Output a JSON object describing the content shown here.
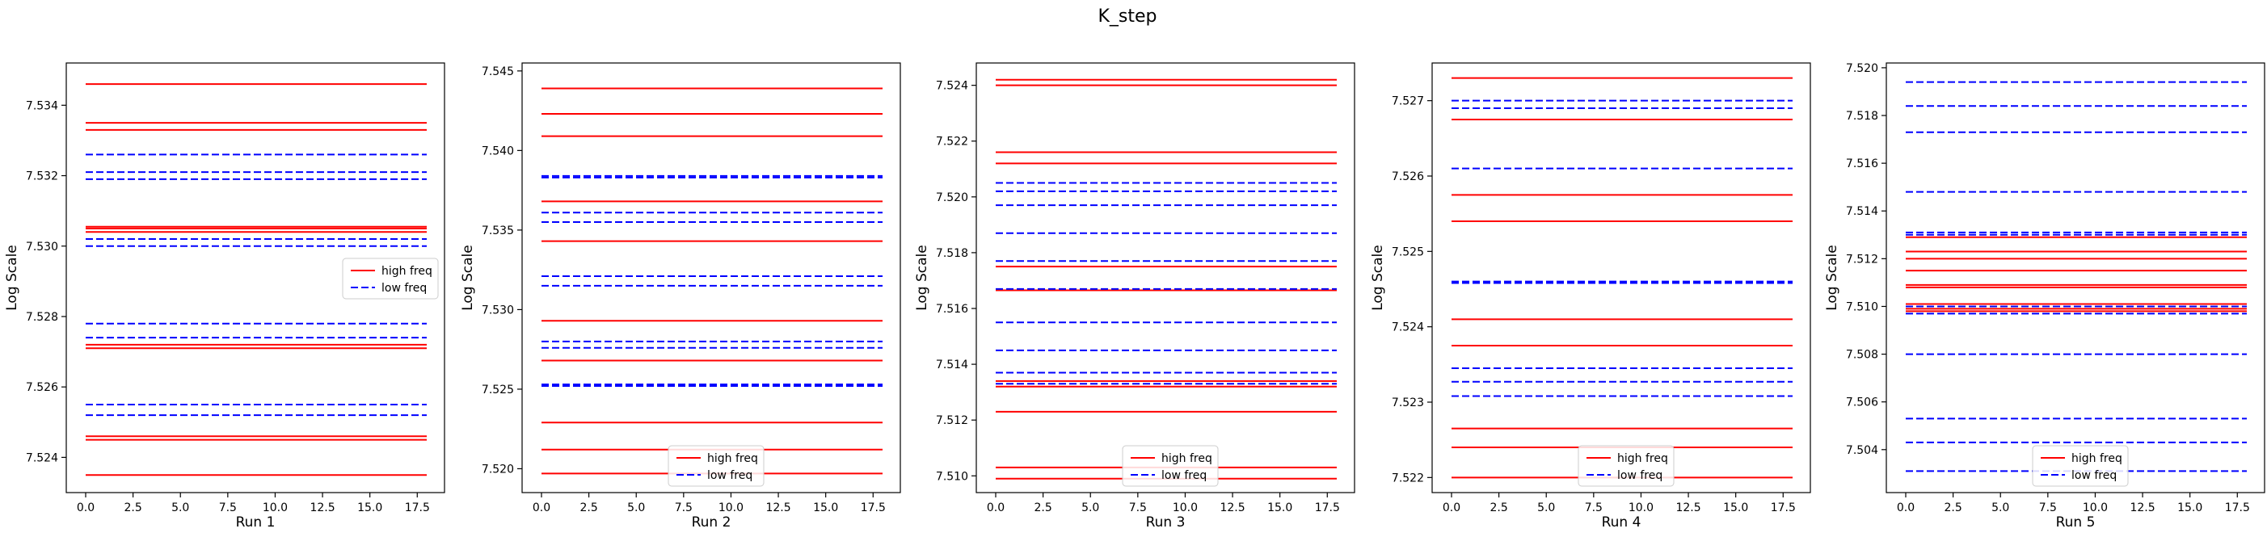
{
  "chart_data": {
    "title": "K_step",
    "type": "line",
    "x_domain": [
      0,
      18
    ],
    "x_ticks": [
      0.0,
      2.5,
      5.0,
      7.5,
      10.0,
      12.5,
      15.0,
      17.5
    ],
    "ylabel": "Log Scale",
    "legend_entries": [
      {
        "name": "high freq",
        "color": "#ff0000",
        "style": "solid"
      },
      {
        "name": "low freq",
        "color": "#0000ff",
        "style": "dashed"
      }
    ],
    "panels": [
      {
        "xlabel": "Run 1",
        "ylim": [
          7.523,
          7.5352
        ],
        "y_ticks": [
          7.524,
          7.526,
          7.528,
          7.53,
          7.532,
          7.534
        ],
        "legend_position": "center-right",
        "high_freq": [
          7.5346,
          7.5335,
          7.5333,
          7.53055,
          7.5305,
          7.5304,
          7.5272,
          7.5271,
          7.5246,
          7.5245,
          7.5235
        ],
        "low_freq": [
          7.5326,
          7.5321,
          7.5319,
          7.5302,
          7.53,
          7.5278,
          7.5274,
          7.5255,
          7.5252
        ]
      },
      {
        "xlabel": "Run 2",
        "ylim": [
          7.5185,
          7.5455
        ],
        "y_ticks": [
          7.52,
          7.525,
          7.53,
          7.535,
          7.54,
          7.545
        ],
        "legend_position": "lower-center",
        "high_freq": [
          7.5439,
          7.5423,
          7.5409,
          7.5368,
          7.5343,
          7.5293,
          7.5268,
          7.5229,
          7.5212,
          7.5197
        ],
        "low_freq": [
          7.5384,
          7.5383,
          7.5361,
          7.5355,
          7.5321,
          7.5315,
          7.528,
          7.5276,
          7.5253,
          7.5252
        ]
      },
      {
        "xlabel": "Run 3",
        "ylim": [
          7.5094,
          7.5248
        ],
        "y_ticks": [
          7.51,
          7.512,
          7.514,
          7.516,
          7.518,
          7.52,
          7.522,
          7.524
        ],
        "legend_position": "lower-center",
        "high_freq": [
          7.5242,
          7.524,
          7.5216,
          7.5212,
          7.5175,
          7.51665,
          7.5134,
          7.5132,
          7.5123,
          7.5103,
          7.5099
        ],
        "low_freq": [
          7.5205,
          7.5202,
          7.5197,
          7.5187,
          7.5177,
          7.5167,
          7.5155,
          7.5145,
          7.5137,
          7.5133
        ]
      },
      {
        "xlabel": "Run 4",
        "ylim": [
          7.5218,
          7.5275
        ],
        "y_ticks": [
          7.522,
          7.523,
          7.524,
          7.525,
          7.526,
          7.527
        ],
        "legend_position": "lower-center",
        "high_freq": [
          7.5273,
          7.52675,
          7.52575,
          7.5254,
          7.5241,
          7.52375,
          7.52265,
          7.5224,
          7.522
        ],
        "low_freq": [
          7.527,
          7.5269,
          7.5261,
          7.5246,
          7.52458,
          7.52345,
          7.52327,
          7.52308
        ]
      },
      {
        "xlabel": "Run 5",
        "ylim": [
          7.5022,
          7.5202
        ],
        "y_ticks": [
          7.504,
          7.506,
          7.508,
          7.51,
          7.512,
          7.514,
          7.516,
          7.518,
          7.52
        ],
        "legend_position": "lower-center",
        "high_freq": [
          7.5129,
          7.5123,
          7.512,
          7.5115,
          7.5109,
          7.5108,
          7.5101,
          7.5099,
          7.5098
        ],
        "low_freq": [
          7.5194,
          7.5184,
          7.5173,
          7.5148,
          7.5131,
          7.513,
          7.51,
          7.5097,
          7.508,
          7.5053,
          7.5043,
          7.5031
        ]
      }
    ]
  }
}
